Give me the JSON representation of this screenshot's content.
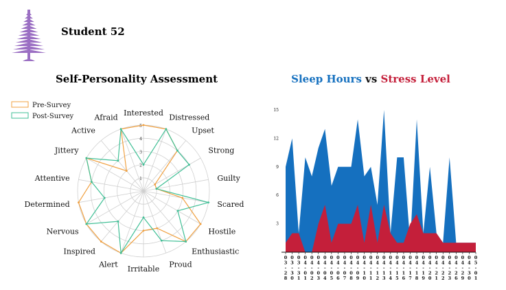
{
  "header": {
    "student_label": "Student 52"
  },
  "colors": {
    "logo": "#9b6fc3",
    "pre_survey": "#f0a040",
    "post_survey": "#3fbf95",
    "sleep": "#1570bf",
    "stress": "#c41f3a",
    "grid": "#cfcfcf"
  },
  "chart_data": [
    {
      "type": "radar",
      "title": "Self-Personality Assessment",
      "legend": {
        "position": "top-left"
      },
      "rmax": 5,
      "ticks": [
        1,
        2,
        3,
        4,
        5
      ],
      "categories": [
        "Interested",
        "Distressed",
        "Upset",
        "Strong",
        "Guilty",
        "Scared",
        "Hostile",
        "Enthusiastic",
        "Proud",
        "Irritable",
        "Alert",
        "Inspired",
        "Nervous",
        "Determined",
        "Attentive",
        "Jittery",
        "Active",
        "Afraid"
      ],
      "series": [
        {
          "name": "Pre-Survey",
          "values": [
            5,
            5,
            4,
            1,
            1,
            3,
            5,
            5,
            3,
            3,
            5,
            5,
            5,
            5,
            4,
            5,
            2,
            5
          ]
        },
        {
          "name": "Post-Survey",
          "values": [
            2,
            5,
            4,
            4,
            1,
            5,
            3,
            5,
            4,
            2,
            5,
            3,
            5,
            3,
            4,
            5,
            3,
            5
          ]
        }
      ]
    },
    {
      "type": "area",
      "title_parts": [
        {
          "text": "Sleep Hours",
          "color": "#1570bf"
        },
        {
          "text": " vs ",
          "color": "#111111"
        },
        {
          "text": "Stress Level",
          "color": "#c41f3a"
        }
      ],
      "ylim": [
        0,
        15
      ],
      "yticks": [
        3,
        6,
        9,
        12,
        15
      ],
      "x": [
        "03/28",
        "03/30",
        "03/31",
        "04/01",
        "04/02",
        "04/03",
        "04/04",
        "04/05",
        "04/06",
        "04/07",
        "04/08",
        "04/09",
        "04/10",
        "04/11",
        "04/12",
        "04/13",
        "04/14",
        "04/15",
        "04/16",
        "04/17",
        "04/18",
        "04/19",
        "04/20",
        "04/21",
        "04/22",
        "04/23",
        "04/26",
        "04/29",
        "04/30",
        "05/01"
      ],
      "series": [
        {
          "name": "Sleep Hours",
          "values": [
            9,
            12,
            2,
            10,
            8,
            11,
            13,
            7,
            9,
            9,
            9,
            14,
            8,
            9,
            5,
            15,
            2,
            10,
            10,
            1,
            14,
            2,
            9,
            2,
            1,
            10,
            1,
            1,
            1,
            1
          ]
        },
        {
          "name": "Stress Level",
          "values": [
            1,
            2,
            2,
            0,
            0,
            3,
            5,
            1,
            3,
            3,
            3,
            5,
            1,
            5,
            1,
            5,
            2,
            1,
            1,
            3,
            4,
            2,
            2,
            2,
            1,
            1,
            1,
            1,
            1,
            1
          ]
        }
      ]
    }
  ]
}
